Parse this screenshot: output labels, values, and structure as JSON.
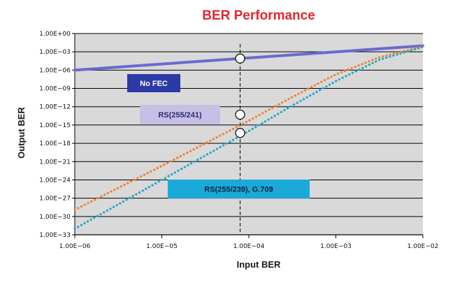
{
  "chart_data": {
    "type": "line",
    "title": "BER Performance",
    "xlabel": "Input BER",
    "ylabel": "Output BER",
    "x_scale": "log",
    "y_scale": "log",
    "xlim": [
      -6,
      -2
    ],
    "ylim": [
      -33,
      0
    ],
    "x_ticks": [
      {
        "exp": -6,
        "label": "1.00E−06"
      },
      {
        "exp": -5,
        "label": "1.00E−05"
      },
      {
        "exp": -4,
        "label": "1.00E−04"
      },
      {
        "exp": -3,
        "label": "1.00E−03"
      },
      {
        "exp": -2,
        "label": "1.00E−02"
      }
    ],
    "y_ticks": [
      {
        "exp": 0,
        "label": "1.00E+00"
      },
      {
        "exp": -3,
        "label": "1.00E−03"
      },
      {
        "exp": -6,
        "label": "1.00E−06"
      },
      {
        "exp": -9,
        "label": "1.00E−09"
      },
      {
        "exp": -12,
        "label": "1.00E−12"
      },
      {
        "exp": -15,
        "label": "1.00E−15"
      },
      {
        "exp": -18,
        "label": "1.00E−18"
      },
      {
        "exp": -21,
        "label": "1.00E−21"
      },
      {
        "exp": -24,
        "label": "1.00E−24"
      },
      {
        "exp": -27,
        "label": "1.00E−27"
      },
      {
        "exp": -30,
        "label": "1.00E−30"
      },
      {
        "exp": -33,
        "label": "1.00E−33"
      }
    ],
    "grid": "horizontal",
    "series": [
      {
        "name": "No FEC",
        "style": "solid",
        "color": "#6a6ad0",
        "legend_color": "#2b3aa6",
        "legend_text_color": "#ffffff",
        "x_exp": [
          -6.0,
          -5.0,
          -4.0,
          -3.0,
          -2.0
        ],
        "y_exp": [
          -6.0,
          -5.0,
          -4.0,
          -3.0,
          -2.0
        ]
      },
      {
        "name": "RS(255/241)",
        "style": "dotted",
        "color": "#f07e2c",
        "legend_color": "#c6c0e6",
        "legend_text_color": "#2a2a6a",
        "x_exp": [
          -6.0,
          -5.5,
          -5.0,
          -4.5,
          -4.0,
          -3.5,
          -3.0,
          -2.5,
          -2.0
        ],
        "y_exp": [
          -28.9,
          -25.3,
          -21.7,
          -18.0,
          -14.3,
          -10.4,
          -6.7,
          -3.9,
          -2.1
        ]
      },
      {
        "name": "RS(255/239), G.709",
        "style": "dotted",
        "color": "#1aa7c8",
        "legend_color": "#1aaad8",
        "legend_text_color": "#102040",
        "x_exp": [
          -6.0,
          -5.5,
          -5.0,
          -4.5,
          -4.0,
          -3.5,
          -3.0,
          -2.5,
          -2.0
        ],
        "y_exp": [
          -32.0,
          -28.0,
          -24.0,
          -20.0,
          -16.0,
          -11.8,
          -7.8,
          -4.3,
          -2.2
        ]
      }
    ],
    "reference_line": {
      "x_exp": -4.1,
      "style": "dashed"
    },
    "markers": [
      {
        "x_exp": -4.1,
        "y_exp": -4.1
      },
      {
        "x_exp": -4.1,
        "y_exp": -13.3
      },
      {
        "x_exp": -4.1,
        "y_exp": -16.3
      }
    ]
  }
}
